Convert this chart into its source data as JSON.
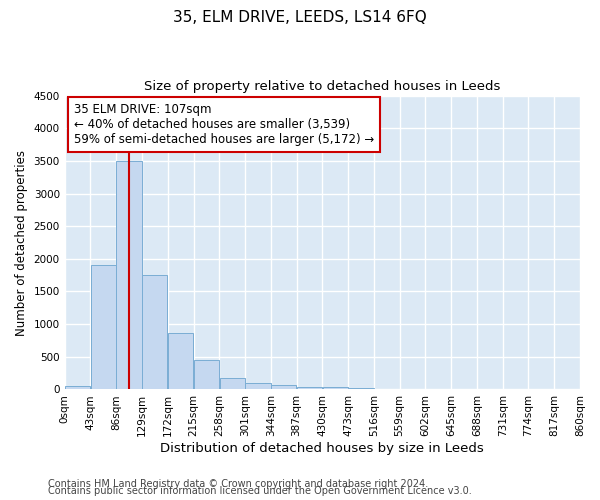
{
  "title": "35, ELM DRIVE, LEEDS, LS14 6FQ",
  "subtitle": "Size of property relative to detached houses in Leeds",
  "xlabel": "Distribution of detached houses by size in Leeds",
  "ylabel": "Number of detached properties",
  "bar_color": "#c5d8f0",
  "bar_edge_color": "#7aadd4",
  "background_color": "#dce9f5",
  "grid_color": "#ffffff",
  "annotation_line_color": "#cc0000",
  "annotation_box_color": "#cc0000",
  "annotation_line1": "35 ELM DRIVE: 107sqm",
  "annotation_line2": "← 40% of detached houses are smaller (3,539)",
  "annotation_line3": "59% of semi-detached houses are larger (5,172) →",
  "property_size": 107,
  "bin_edges": [
    0,
    43,
    86,
    129,
    172,
    215,
    258,
    301,
    344,
    387,
    430,
    473,
    516,
    559,
    602,
    645,
    688,
    731,
    774,
    817,
    860
  ],
  "bar_heights": [
    50,
    1900,
    3500,
    1760,
    860,
    445,
    175,
    100,
    65,
    40,
    35,
    20,
    10,
    5,
    3,
    2,
    1,
    1,
    1,
    1
  ],
  "ylim": [
    0,
    4500
  ],
  "yticks": [
    0,
    500,
    1000,
    1500,
    2000,
    2500,
    3000,
    3500,
    4000,
    4500
  ],
  "tick_labels": [
    "0sqm",
    "43sqm",
    "86sqm",
    "129sqm",
    "172sqm",
    "215sqm",
    "258sqm",
    "301sqm",
    "344sqm",
    "387sqm",
    "430sqm",
    "473sqm",
    "516sqm",
    "559sqm",
    "602sqm",
    "645sqm",
    "688sqm",
    "731sqm",
    "774sqm",
    "817sqm",
    "860sqm"
  ],
  "footnote1": "Contains HM Land Registry data © Crown copyright and database right 2024.",
  "footnote2": "Contains public sector information licensed under the Open Government Licence v3.0.",
  "title_fontsize": 11,
  "subtitle_fontsize": 9.5,
  "xlabel_fontsize": 9.5,
  "ylabel_fontsize": 8.5,
  "tick_fontsize": 7.5,
  "annotation_fontsize": 8.5,
  "footnote_fontsize": 7
}
